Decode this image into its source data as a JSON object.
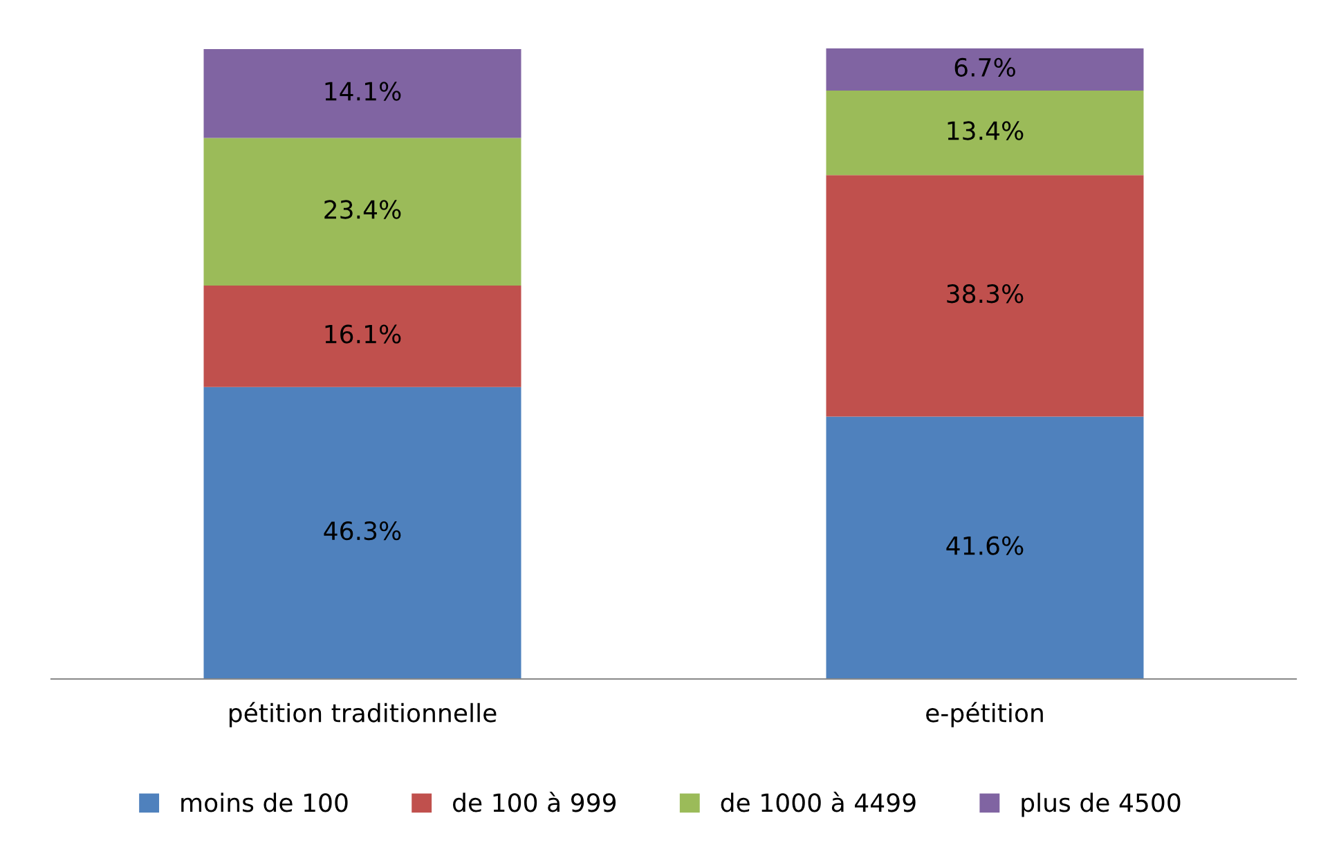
{
  "chart_data": {
    "type": "bar",
    "stacked": true,
    "categories": [
      "pétition traditionnelle",
      "e-pétition"
    ],
    "series": [
      {
        "name": "moins de 100",
        "color": "#4f81bd",
        "values": [
          46.3,
          41.6
        ],
        "value_labels": [
          "46.3%",
          "41.6%"
        ]
      },
      {
        "name": "de 100 à 999",
        "color": "#c0504d",
        "values": [
          16.1,
          38.3
        ],
        "value_labels": [
          "16.1%",
          "38.3%"
        ]
      },
      {
        "name": "de 1000 à 4499",
        "color": "#9bbb59",
        "values": [
          23.4,
          13.4
        ],
        "value_labels": [
          "23.4%",
          "13.4%"
        ]
      },
      {
        "name": "plus de 4500",
        "color": "#8064a2",
        "values": [
          14.1,
          6.7
        ],
        "value_labels": [
          "14.1%",
          "6.7%"
        ]
      }
    ],
    "legend": "bottom",
    "tick_labels": "x",
    "grid": false
  }
}
